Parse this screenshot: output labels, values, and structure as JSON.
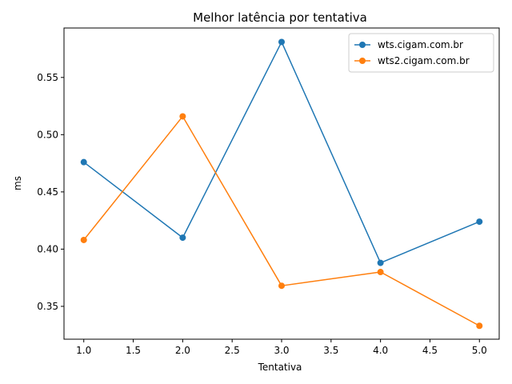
{
  "chart_data": {
    "type": "line",
    "title": "Melhor latência por tentativa",
    "xlabel": "Tentativa",
    "ylabel": "ms",
    "x": [
      1,
      2,
      3,
      4,
      5
    ],
    "xlim": [
      0.8,
      5.2
    ],
    "ylim": [
      0.3213,
      0.5932
    ],
    "xticks": [
      1.0,
      1.5,
      2.0,
      2.5,
      3.0,
      3.5,
      4.0,
      4.5,
      5.0
    ],
    "xtick_labels": [
      "1.0",
      "1.5",
      "2.0",
      "2.5",
      "3.0",
      "3.5",
      "4.0",
      "4.5",
      "5.0"
    ],
    "yticks": [
      0.35,
      0.4,
      0.45,
      0.5,
      0.55
    ],
    "ytick_labels": [
      "0.35",
      "0.40",
      "0.45",
      "0.50",
      "0.55"
    ],
    "grid": false,
    "legend_position": "top-right",
    "series": [
      {
        "name": "wts.cigam.com.br",
        "color": "#1f77b4",
        "values": [
          0.476,
          0.41,
          0.581,
          0.388,
          0.424
        ]
      },
      {
        "name": "wts2.cigam.com.br",
        "color": "#ff7f0e",
        "values": [
          0.408,
          0.516,
          0.368,
          0.38,
          0.333
        ]
      }
    ]
  }
}
